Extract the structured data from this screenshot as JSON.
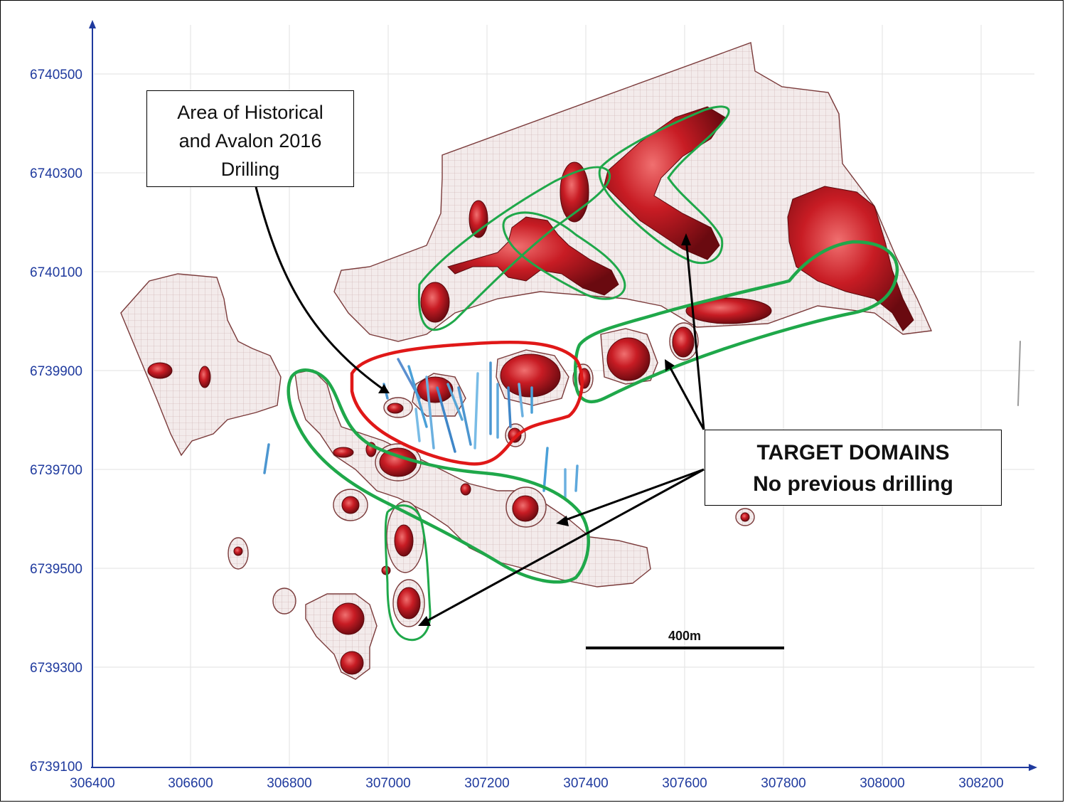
{
  "map": {
    "y_axis": {
      "ticks": [
        "6740500",
        "6740300",
        "6740100",
        "6739900",
        "6739700",
        "6739500",
        "6739300",
        "6739100"
      ]
    },
    "x_axis": {
      "ticks": [
        "306400",
        "306600",
        "306800",
        "307000",
        "307200",
        "307400",
        "307600",
        "307800",
        "308000",
        "308200"
      ]
    },
    "callouts": {
      "drilling_line1": "Area of Historical",
      "drilling_line2": "and Avalon 2016",
      "drilling_line3": "Drilling",
      "targets_line1": "TARGET DOMAINS",
      "targets_line2": "No previous drilling"
    },
    "scale_bar": {
      "label": "400m"
    },
    "colors": {
      "axis": "#1f3a9e",
      "mesh": "#8a5050",
      "orebody": "#b0121a",
      "target_outline": "#1fa84a",
      "drilling_outline": "#e01818"
    }
  }
}
